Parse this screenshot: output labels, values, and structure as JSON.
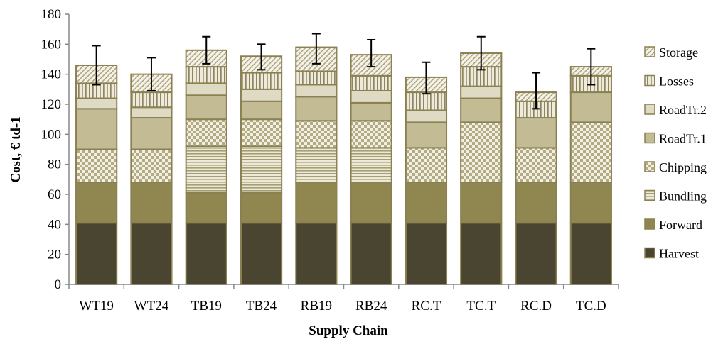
{
  "chart_data": {
    "type": "bar",
    "stacked": true,
    "title": "",
    "xlabel": "Supply Chain",
    "ylabel": "Cost, € td-1",
    "ylim": [
      0,
      180
    ],
    "yticks": [
      0,
      20,
      40,
      60,
      80,
      100,
      120,
      140,
      160,
      180
    ],
    "grid": false,
    "legend_position": "right",
    "categories": [
      "WT19",
      "WT24",
      "TB19",
      "TB24",
      "RB19",
      "RB24",
      "RC.T",
      "TC.T",
      "RC.D",
      "TC.D"
    ],
    "series": [
      {
        "name": "Harvest",
        "pattern": "solid",
        "color": "#4a4530",
        "values": [
          41,
          41,
          41,
          41,
          41,
          41,
          41,
          41,
          41,
          41
        ]
      },
      {
        "name": "Forward",
        "pattern": "solid",
        "color": "#8f8650",
        "values": [
          27,
          27,
          20,
          20,
          27,
          27,
          27,
          27,
          27,
          27
        ]
      },
      {
        "name": "Bundling",
        "pattern": "hlines",
        "color": "#c9c39a",
        "values": [
          0,
          0,
          31,
          31,
          23,
          23,
          0,
          0,
          0,
          0
        ]
      },
      {
        "name": "Chipping",
        "pattern": "checker",
        "color": "#b8b08a",
        "values": [
          22,
          22,
          18,
          18,
          18,
          18,
          23,
          40,
          23,
          40
        ]
      },
      {
        "name": "RoadTr.1",
        "pattern": "solid",
        "color": "#c2bb94",
        "values": [
          27,
          21,
          16,
          12,
          16,
          12,
          17,
          16,
          20,
          20
        ]
      },
      {
        "name": "RoadTr.2",
        "pattern": "solid",
        "color": "#dedac4",
        "values": [
          7,
          7,
          8,
          8,
          8,
          8,
          8,
          8,
          0,
          0
        ]
      },
      {
        "name": "Losses",
        "pattern": "vlines",
        "color": "#a09a74",
        "values": [
          10,
          10,
          11,
          11,
          9,
          10,
          12,
          13,
          11,
          11
        ]
      },
      {
        "name": "Storage",
        "pattern": "diag",
        "color": "#a09a74",
        "values": [
          12,
          12,
          11,
          11,
          16,
          14,
          10,
          9,
          6,
          6
        ]
      }
    ],
    "totals": [
      146,
      140,
      156,
      152,
      158,
      153,
      138,
      154,
      128,
      145
    ],
    "error_bars": [
      {
        "low": 133,
        "high": 159
      },
      {
        "low": 129,
        "high": 151
      },
      {
        "low": 147,
        "high": 165
      },
      {
        "low": 143,
        "high": 160
      },
      {
        "low": 147,
        "high": 167
      },
      {
        "low": 145,
        "high": 163
      },
      {
        "low": 127,
        "high": 148
      },
      {
        "low": 143,
        "high": 165
      },
      {
        "low": 117,
        "high": 141
      },
      {
        "low": 133,
        "high": 157
      }
    ],
    "colors": {
      "axis": "#888888",
      "bar_border": "#8a8052",
      "error_bar": "#000000"
    }
  }
}
